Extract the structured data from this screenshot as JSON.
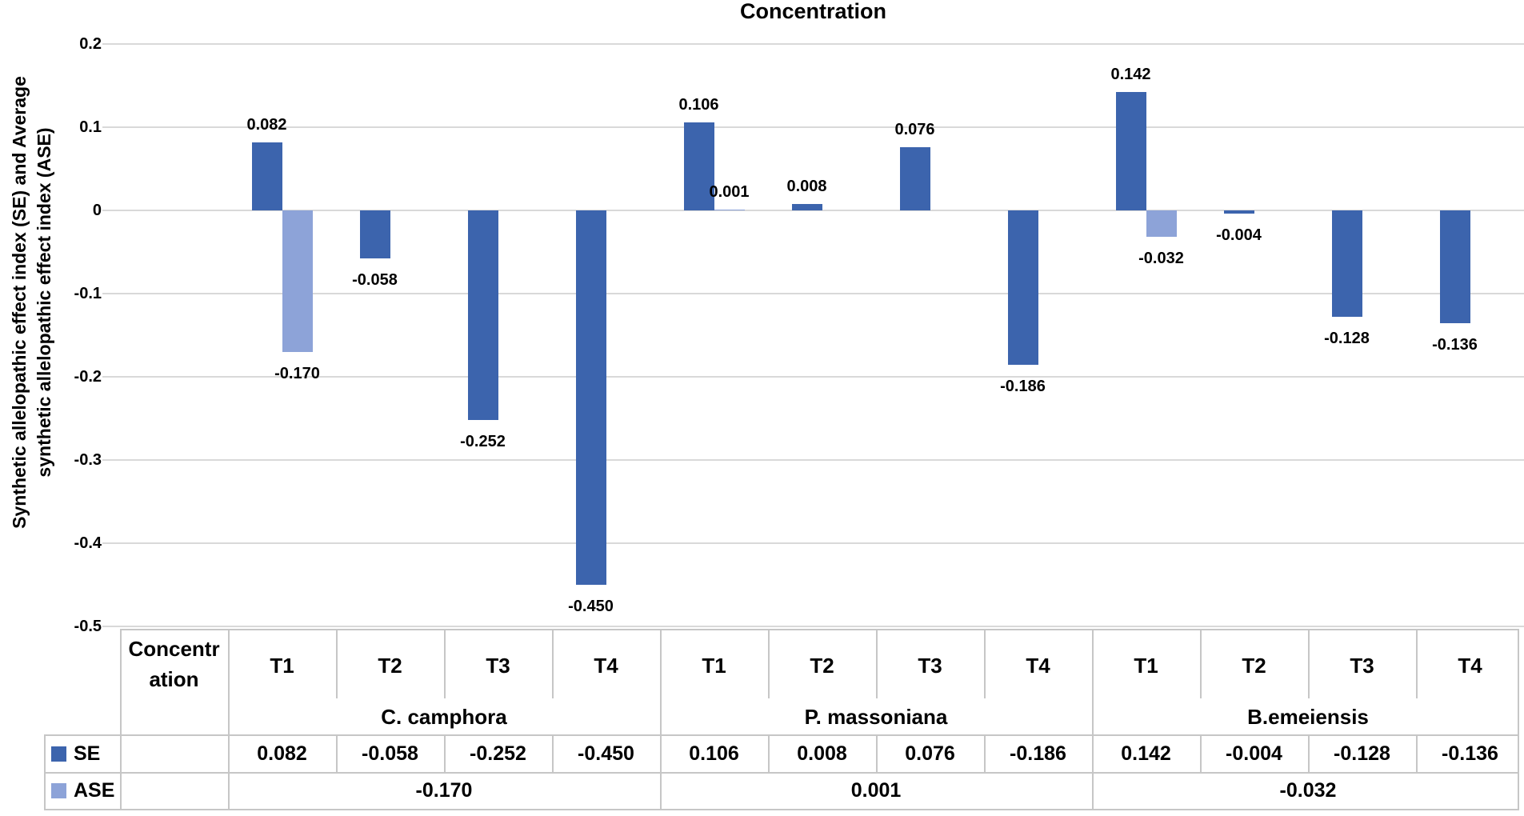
{
  "chart_data": {
    "type": "bar",
    "title": "Concentration",
    "y_axis_label_lines": [
      "Synthetic allelopathic effect index (SE) and Average",
      "synthetic allelopathic effect index (ASE)"
    ],
    "ylim": [
      -0.5,
      0.2
    ],
    "ytick_labels": [
      "0.2",
      "0.1",
      "0",
      "-0.1",
      "-0.2",
      "-0.3",
      "-0.4",
      "-0.5"
    ],
    "grid": "horizontal",
    "legend_position": "left-of-data-table",
    "series": [
      {
        "name": "SE",
        "color": "#3c64ad"
      },
      {
        "name": "ASE",
        "color": "#8da3d8"
      }
    ],
    "groups": [
      {
        "name": "C. camphora",
        "treatments": [
          "T1",
          "T2",
          "T3",
          "T4"
        ],
        "se_values": [
          0.082,
          -0.058,
          -0.252,
          -0.45
        ],
        "se_labels": [
          "0.082",
          "-0.058",
          "-0.252",
          "-0.450"
        ],
        "ase_value": -0.17,
        "ase_label": "-0.170"
      },
      {
        "name": "P. massoniana",
        "treatments": [
          "T1",
          "T2",
          "T3",
          "T4"
        ],
        "se_values": [
          0.106,
          0.008,
          0.076,
          -0.186
        ],
        "se_labels": [
          "0.106",
          "0.008",
          "0.076",
          "-0.186"
        ],
        "ase_value": 0.001,
        "ase_label": "0.001"
      },
      {
        "name": "B.emeiensis",
        "treatments": [
          "T1",
          "T2",
          "T3",
          "T4"
        ],
        "se_values": [
          0.142,
          -0.004,
          -0.128,
          -0.136
        ],
        "se_labels": [
          "0.142",
          "-0.004",
          "-0.128",
          "-0.136"
        ],
        "ase_value": -0.032,
        "ase_label": "-0.032"
      }
    ]
  },
  "table": {
    "corner_header": "Concentration",
    "corner_header_lines": [
      "Concentr",
      "ation"
    ],
    "row_labels": [
      "SE",
      "ASE"
    ]
  }
}
